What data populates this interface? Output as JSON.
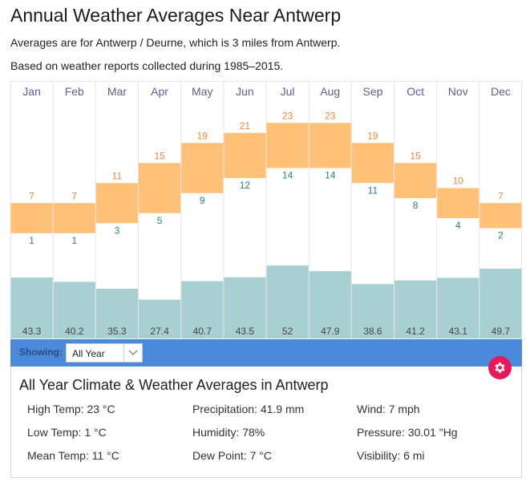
{
  "header": {
    "title": "Annual Weather Averages Near Antwerp",
    "subtitle_1": "Averages are for Antwerp / Deurne, which is 3 miles from Antwerp.",
    "subtitle_2": "Based on weather reports collected during 1985–2015."
  },
  "colors": {
    "temp_band": "#ffc078",
    "high_label": "#e8873a",
    "low_label": "#2a7f88",
    "precip_bar": "#a8d0d2",
    "month_label": "#5c5f8f",
    "toolbar": "#4a89dc",
    "gear_button": "#e8195a"
  },
  "chart_data": {
    "type": "bar",
    "title": "Annual Weather Averages Near Antwerp",
    "categories": [
      "Jan",
      "Feb",
      "Mar",
      "Apr",
      "May",
      "Jun",
      "Jul",
      "Aug",
      "Sep",
      "Oct",
      "Nov",
      "Dec"
    ],
    "series": [
      {
        "name": "High Temp (°C)",
        "values": [
          7,
          7,
          11,
          15,
          19,
          21,
          23,
          23,
          19,
          15,
          10,
          7
        ]
      },
      {
        "name": "Low Temp (°C)",
        "values": [
          1,
          1,
          3,
          5,
          9,
          12,
          14,
          14,
          11,
          8,
          4,
          2
        ]
      },
      {
        "name": "Precipitation (mm)",
        "values": [
          43.3,
          40.2,
          35.3,
          27.4,
          40.7,
          43.5,
          52,
          47.9,
          38.6,
          41.2,
          43.1,
          49.7
        ]
      }
    ],
    "xlabel": "",
    "ylabel": "",
    "grid": true,
    "legend": "none"
  },
  "toolbar": {
    "showing_label": "Showing:",
    "selected_period": "All Year",
    "dropdown_icon": "chevron-down-icon",
    "settings_icon": "gear-icon"
  },
  "summary": {
    "title": "All Year Climate & Weather Averages in Antwerp",
    "stats": [
      [
        "High Temp: 23 °C",
        "Precipitation: 41.9 mm",
        "Wind: 7 mph"
      ],
      [
        "Low Temp: 1 °C",
        "Humidity: 78%",
        "Pressure: 30.01 \"Hg"
      ],
      [
        "Mean Temp: 11 °C",
        "Dew Point: 7 °C",
        "Visibility: 6 mi"
      ]
    ]
  }
}
